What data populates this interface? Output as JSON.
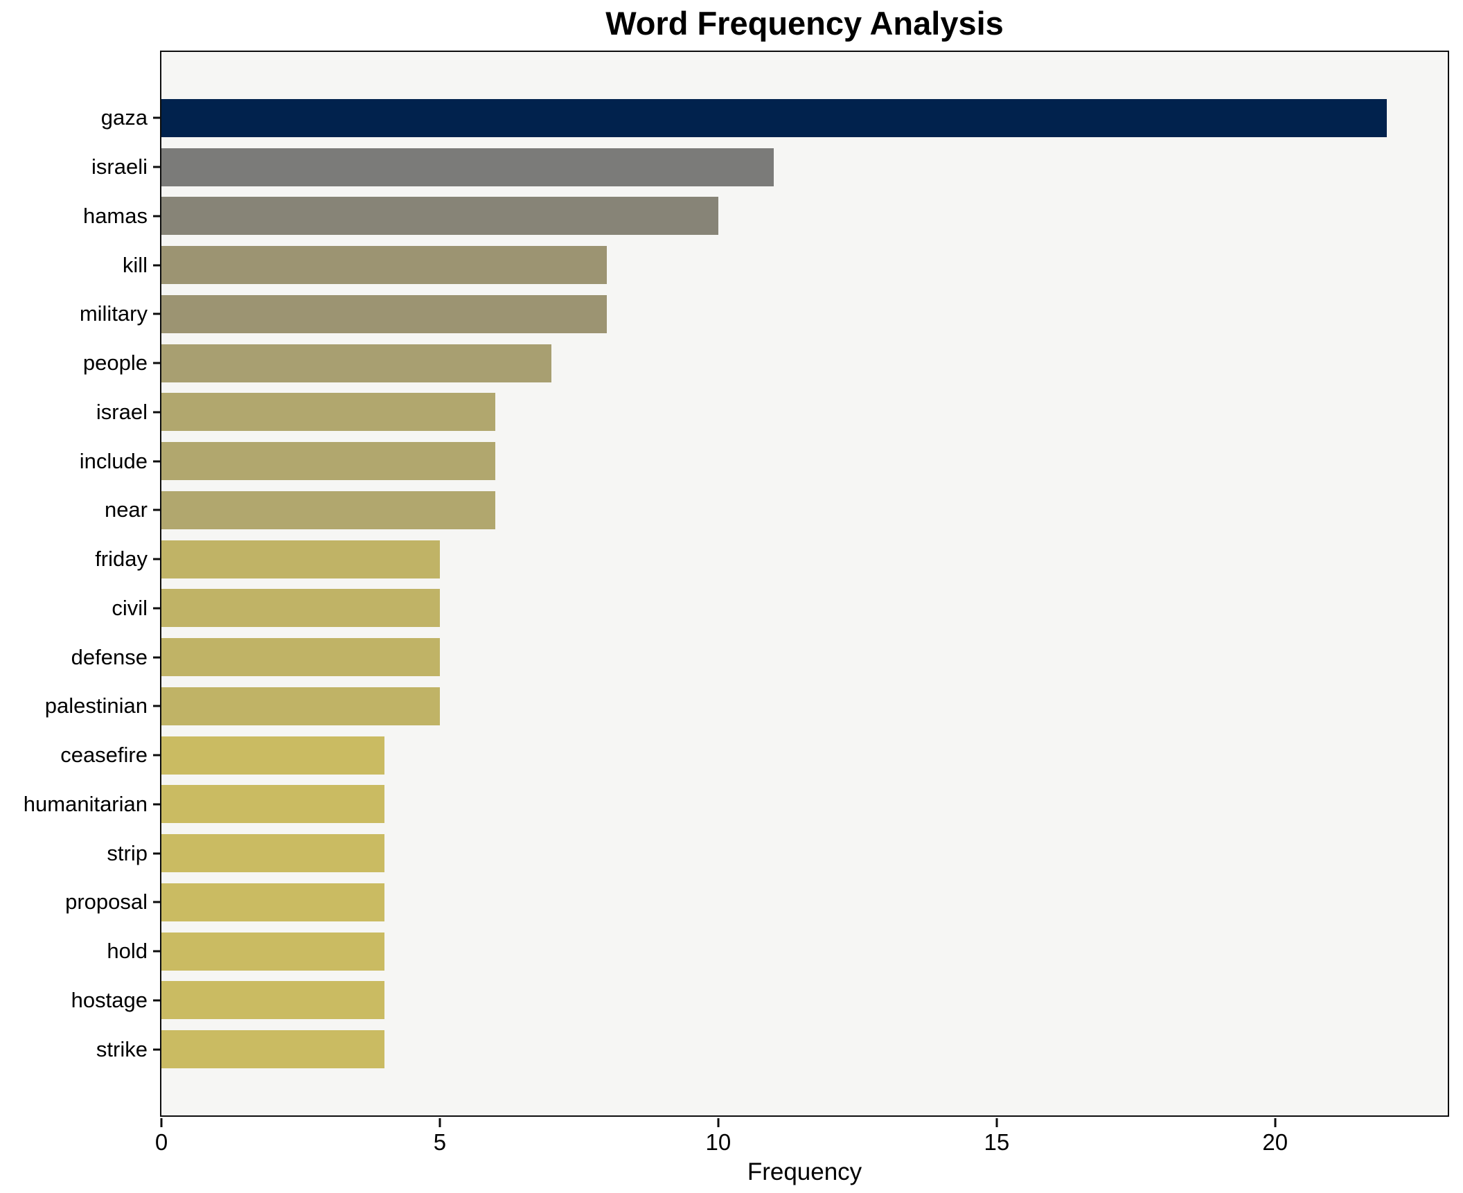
{
  "palette": {
    "figure_bg": "#ffffff",
    "plot_bg": "#f6f6f4",
    "spine": "#0d0d0d",
    "text": "#000000"
  },
  "chart_data": {
    "type": "bar",
    "orientation": "horizontal",
    "title": "Word Frequency Analysis",
    "xlabel": "Frequency",
    "ylabel": "",
    "categories": [
      "gaza",
      "israeli",
      "hamas",
      "kill",
      "military",
      "people",
      "israel",
      "include",
      "near",
      "friday",
      "civil",
      "defense",
      "palestinian",
      "ceasefire",
      "humanitarian",
      "strip",
      "proposal",
      "hold",
      "hostage",
      "strike"
    ],
    "values": [
      22,
      11,
      10,
      8,
      8,
      7,
      6,
      6,
      6,
      5,
      5,
      5,
      5,
      4,
      4,
      4,
      4,
      4,
      4,
      4
    ],
    "bar_colors": [
      "#01224d",
      "#7b7b79",
      "#878477",
      "#9c9472",
      "#9c9472",
      "#a89f71",
      "#b1a76e",
      "#b1a76e",
      "#b1a76e",
      "#c0b366",
      "#c0b366",
      "#c0b366",
      "#c0b366",
      "#cabb62",
      "#cabb62",
      "#cabb62",
      "#cabb62",
      "#cabb62",
      "#cabb62",
      "#cabb62"
    ],
    "xlim": [
      0,
      23.1
    ],
    "xticks": [
      0,
      5,
      10,
      15,
      20
    ],
    "grid": false,
    "legend": null
  }
}
